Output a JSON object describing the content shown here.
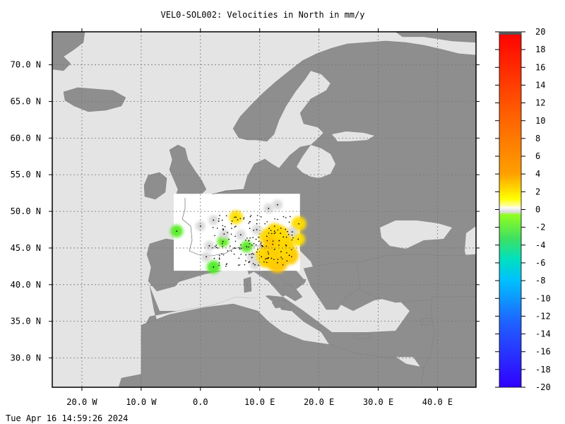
{
  "title": "VEL0-SOL002: Velocities in North in mm/y",
  "footer_timestamp": "Tue Apr 16 14:59:26 2024",
  "map": {
    "lon_range": [
      -25,
      46.5
    ],
    "lat_range": [
      26,
      74.5
    ],
    "ocean_color": "#e4e4e4",
    "land_color": "#8e8e8e",
    "data_area_color": "#ffffff",
    "grid": true,
    "lon_ticks": [
      {
        "value": -20,
        "label": "20.0 W"
      },
      {
        "value": -10,
        "label": "10.0 W"
      },
      {
        "value": 0,
        "label": "0.0"
      },
      {
        "value": 10,
        "label": "10.0 E"
      },
      {
        "value": 20,
        "label": "20.0 E"
      },
      {
        "value": 30,
        "label": "30.0 E"
      },
      {
        "value": 40,
        "label": "40.0 E"
      }
    ],
    "lat_ticks": [
      {
        "value": 70,
        "label": "70.0 N"
      },
      {
        "value": 65,
        "label": "65.0 N"
      },
      {
        "value": 60,
        "label": "60.0 N"
      },
      {
        "value": 55,
        "label": "55.0 N"
      },
      {
        "value": 50,
        "label": "50.0 N"
      },
      {
        "value": 45,
        "label": "45.0 N"
      },
      {
        "value": 40,
        "label": "40.0 N"
      },
      {
        "value": 35,
        "label": "35.0 N"
      },
      {
        "value": 30,
        "label": "30.0 N"
      }
    ],
    "data_region": {
      "lon": [
        -4.5,
        16.8
      ],
      "lat": [
        41.9,
        52.4
      ]
    }
  },
  "colorbar": {
    "min": -20,
    "max": 20,
    "tick_labels": [
      "20",
      "18",
      "16",
      "14",
      "12",
      "10",
      "8",
      "6",
      "4",
      "2",
      "0",
      "-2",
      "-4",
      "-6",
      "-8",
      "-10",
      "-12",
      "-14",
      "-16",
      "-18",
      "-20"
    ]
  },
  "stations": [
    {
      "lon": 11.5,
      "lat": 44.2,
      "v": 5.5
    },
    {
      "lon": 12.5,
      "lat": 44.8,
      "v": 5.0
    },
    {
      "lon": 13.3,
      "lat": 46.0,
      "v": 4.8
    },
    {
      "lon": 14.0,
      "lat": 46.5,
      "v": 4.5
    },
    {
      "lon": 12.5,
      "lat": 47.3,
      "v": 4.0
    },
    {
      "lon": 11.2,
      "lat": 46.6,
      "v": 3.8
    },
    {
      "lon": 12.2,
      "lat": 45.5,
      "v": 5.5
    },
    {
      "lon": 13.0,
      "lat": 43.0,
      "v": 6.0
    },
    {
      "lon": 11.0,
      "lat": 43.5,
      "v": 4.5
    },
    {
      "lon": 15.0,
      "lat": 44.0,
      "v": 5.2
    },
    {
      "lon": 14.5,
      "lat": 45.3,
      "v": 4.2
    },
    {
      "lon": 13.5,
      "lat": 47.0,
      "v": 3.5
    },
    {
      "lon": 16.5,
      "lat": 46.2,
      "v": 3.0
    },
    {
      "lon": 16.6,
      "lat": 48.3,
      "v": 3.5
    },
    {
      "lon": 6.0,
      "lat": 49.2,
      "v": 3.0
    },
    {
      "lon": 13.6,
      "lat": 44.5,
      "v": 4.0
    },
    {
      "lon": 10.3,
      "lat": 43.8,
      "v": 3.5
    },
    {
      "lon": 12.0,
      "lat": 43.6,
      "v": 4.8
    },
    {
      "lon": -4.0,
      "lat": 47.3,
      "v": -2.5
    },
    {
      "lon": 2.2,
      "lat": 42.4,
      "v": -2.8
    },
    {
      "lon": 3.8,
      "lat": 45.9,
      "v": -2.0
    },
    {
      "lon": 7.8,
      "lat": 45.2,
      "v": -2.2
    },
    {
      "lon": 6.8,
      "lat": 46.8,
      "v": 0.1
    },
    {
      "lon": 9.5,
      "lat": 47.5,
      "v": 0.1
    },
    {
      "lon": 11.5,
      "lat": 50.4,
      "v": 0.1
    },
    {
      "lon": 13.0,
      "lat": 50.9,
      "v": 0.1
    },
    {
      "lon": 2.2,
      "lat": 48.8,
      "v": 0.1
    },
    {
      "lon": 0.0,
      "lat": 48.0,
      "v": 0.1
    },
    {
      "lon": 1.5,
      "lat": 45.3,
      "v": 0.1
    },
    {
      "lon": 1.0,
      "lat": 43.8,
      "v": 0.1
    },
    {
      "lon": 4.0,
      "lat": 46.9,
      "v": 0.1
    },
    {
      "lon": 15.5,
      "lat": 47.2,
      "v": 0.1
    },
    {
      "lon": 8.7,
      "lat": 43.7,
      "v": 0.1
    },
    {
      "lon": 9.2,
      "lat": 42.7,
      "v": 0.1
    }
  ]
}
